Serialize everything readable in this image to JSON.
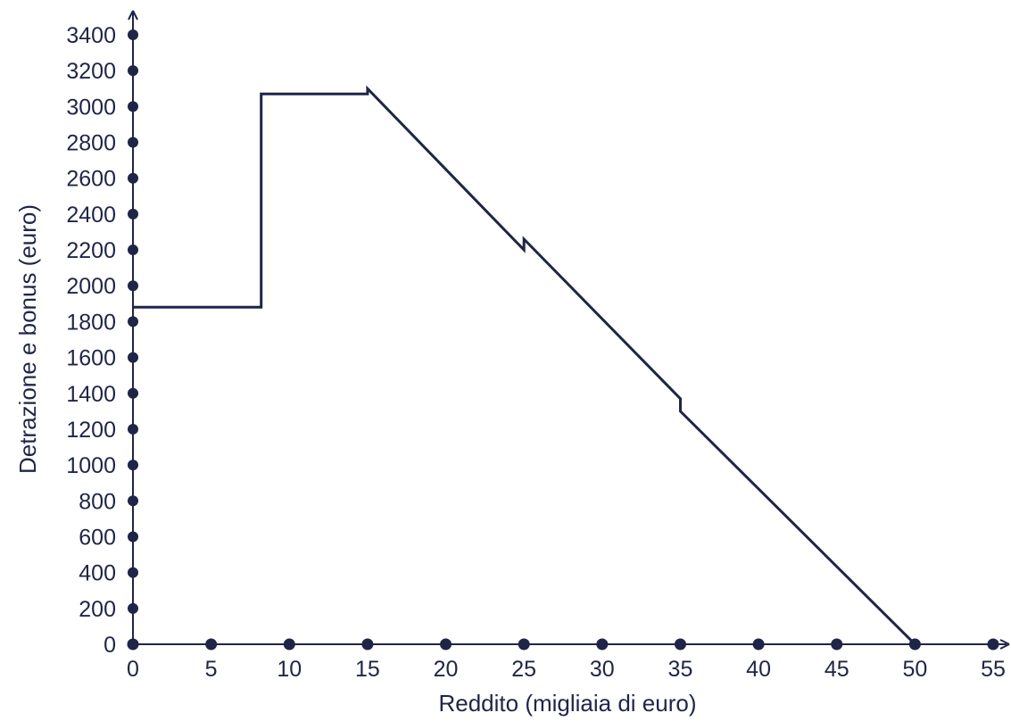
{
  "chart_data": {
    "type": "line",
    "title": "",
    "xlabel": "Reddito (migliaia di euro)",
    "ylabel": "Detrazione e bonus (euro)",
    "xlim": [
      0,
      55
    ],
    "ylim": [
      0,
      3400
    ],
    "x_ticks": [
      0,
      5,
      10,
      15,
      20,
      25,
      30,
      35,
      40,
      45,
      50,
      55
    ],
    "y_ticks": [
      0,
      200,
      400,
      600,
      800,
      1000,
      1200,
      1400,
      1600,
      1800,
      2000,
      2200,
      2400,
      2600,
      2800,
      3000,
      3200,
      3400
    ],
    "grid": false,
    "legend": "none",
    "line_color": "#1f2547",
    "series": [
      {
        "points": [
          [
            0,
            1880
          ],
          [
            8.2,
            1880
          ],
          [
            8.2,
            3070
          ],
          [
            15,
            3070
          ],
          [
            15,
            3100
          ],
          [
            25,
            2200
          ],
          [
            25,
            2260
          ],
          [
            35,
            1370
          ],
          [
            35,
            1300
          ],
          [
            50,
            0
          ]
        ]
      }
    ]
  }
}
